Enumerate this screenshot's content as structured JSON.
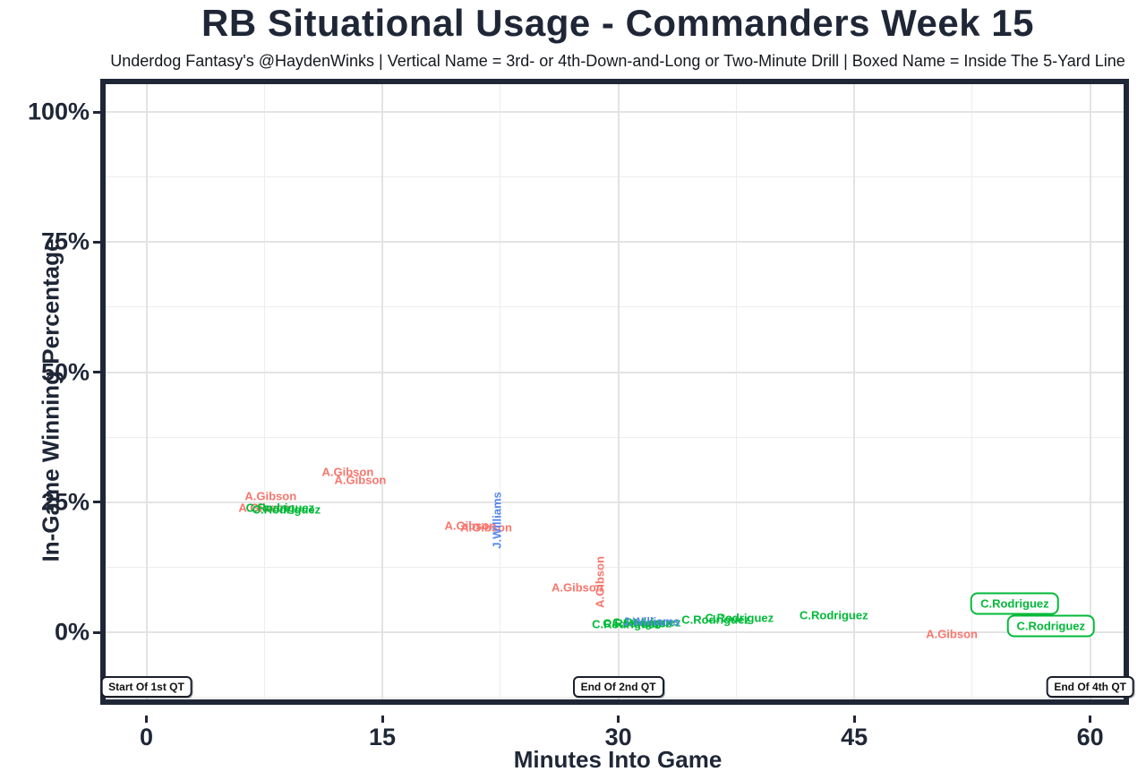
{
  "title": "RB Situational Usage - Commanders Week 15",
  "subtitle": "Underdog Fantasy's @HaydenWinks | Vertical Name = 3rd- or 4th-Down-and-Long or Two-Minute Drill | Boxed Name = Inside The 5-Yard Line",
  "chart_data": {
    "type": "scatter",
    "title": "RB Situational Usage - Commanders Week 15",
    "xlabel": "Minutes Into Game",
    "ylabel": "In-Game Winning Percentage",
    "xlim": [
      -2.9,
      62.5
    ],
    "ylim": [
      -15.0,
      105.3
    ],
    "grid": "major-and-minor",
    "legend_position": "none",
    "x_ticks": [
      {
        "v": 0,
        "label": "0"
      },
      {
        "v": 15,
        "label": "15"
      },
      {
        "v": 30,
        "label": "30"
      },
      {
        "v": 45,
        "label": "45"
      },
      {
        "v": 60,
        "label": "60"
      }
    ],
    "y_ticks": [
      {
        "v": 0,
        "label": "0%"
      },
      {
        "v": 25,
        "label": "25%"
      },
      {
        "v": 50,
        "label": "50%"
      },
      {
        "v": 75,
        "label": "75%"
      },
      {
        "v": 100,
        "label": "100%"
      }
    ],
    "x_minor_ticks": [
      7.5,
      22.5,
      37.5,
      52.5
    ],
    "y_minor_ticks": [
      -12.5,
      12.5,
      37.5,
      62.5,
      87.5
    ],
    "players": [
      {
        "name": "A.Gibson",
        "color": "#F8766D"
      },
      {
        "name": "C.Rodriguez",
        "color": "#00BA38"
      },
      {
        "name": "J.Williams",
        "color": "#5585F0"
      }
    ],
    "points": [
      {
        "player": "A.Gibson",
        "x": 7.5,
        "y": 23.9,
        "orient": "h",
        "boxed": false
      },
      {
        "player": "C.Rodriguez",
        "x": 8.5,
        "y": 23.9,
        "orient": "h",
        "boxed": false
      },
      {
        "player": "C.Rodriguez",
        "x": 8.9,
        "y": 23.6,
        "orient": "h",
        "boxed": false
      },
      {
        "player": "A.Gibson",
        "x": 7.9,
        "y": 26.2,
        "orient": "h",
        "boxed": false
      },
      {
        "player": "A.Gibson",
        "x": 12.8,
        "y": 30.8,
        "orient": "h",
        "boxed": false
      },
      {
        "player": "A.Gibson",
        "x": 13.6,
        "y": 29.3,
        "orient": "h",
        "boxed": false
      },
      {
        "player": "A.Gibson",
        "x": 20.6,
        "y": 20.5,
        "orient": "h",
        "boxed": false
      },
      {
        "player": "A.Gibson",
        "x": 21.6,
        "y": 20.1,
        "orient": "h",
        "boxed": false
      },
      {
        "player": "J.Williams",
        "x": 22.3,
        "y": 21.6,
        "orient": "v",
        "boxed": false
      },
      {
        "player": "A.Gibson",
        "x": 27.4,
        "y": 8.6,
        "orient": "h",
        "boxed": false
      },
      {
        "player": "A.Gibson",
        "x": 28.8,
        "y": 9.6,
        "orient": "v",
        "boxed": false
      },
      {
        "player": "C.Rodriguez",
        "x": 30.5,
        "y": 1.55,
        "orient": "h",
        "boxed": false
      },
      {
        "player": "C.Rodriguez",
        "x": 31.2,
        "y": 1.7,
        "orient": "h",
        "boxed": false
      },
      {
        "player": "C.Rodriguez",
        "x": 31.8,
        "y": 1.9,
        "orient": "h",
        "boxed": false
      },
      {
        "player": "J.Williams",
        "x": 32.1,
        "y": 2.1,
        "orient": "h",
        "boxed": false
      },
      {
        "player": "C.Rodriguez",
        "x": 36.2,
        "y": 2.4,
        "orient": "h",
        "boxed": false
      },
      {
        "player": "C.Rodriguez",
        "x": 37.7,
        "y": 2.75,
        "orient": "h",
        "boxed": false
      },
      {
        "player": "C.Rodriguez",
        "x": 43.7,
        "y": 3.3,
        "orient": "h",
        "boxed": false
      },
      {
        "player": "A.Gibson",
        "x": 51.2,
        "y": -0.3,
        "orient": "h",
        "boxed": false
      },
      {
        "player": "C.Rodriguez",
        "x": 55.2,
        "y": 5.5,
        "orient": "h",
        "boxed": true
      },
      {
        "player": "C.Rodriguez",
        "x": 57.5,
        "y": 1.2,
        "orient": "h",
        "boxed": true
      }
    ],
    "annotations": [
      {
        "label": "Start Of 1st QT",
        "x": 0,
        "y": -10.5
      },
      {
        "label": "End Of 2nd QT",
        "x": 30,
        "y": -10.5
      },
      {
        "label": "End Of 4th QT",
        "x": 60,
        "y": -10.5
      }
    ]
  }
}
